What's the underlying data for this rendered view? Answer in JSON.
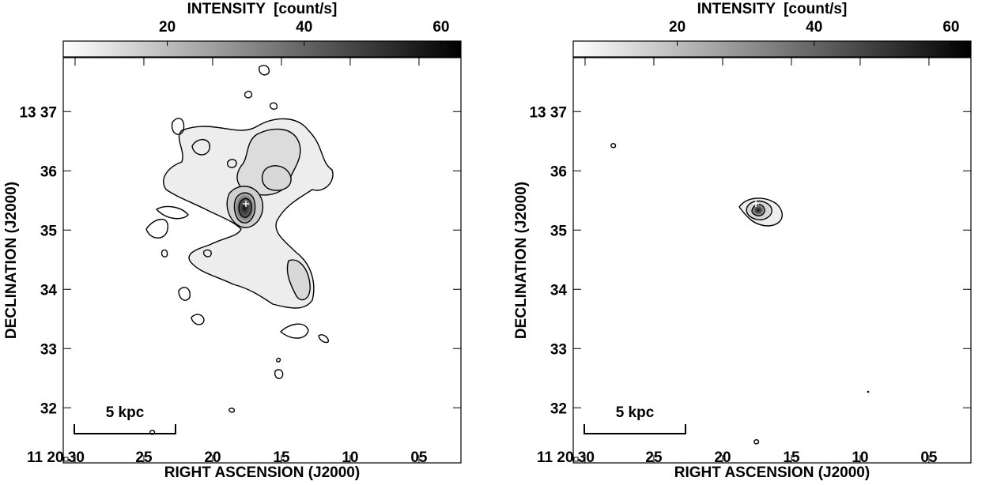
{
  "chart_data": [
    {
      "type": "image",
      "colorbar_label": "INTENSITY  [count/s]",
      "clim": [
        4.8,
        62.9
      ],
      "cticks": [
        20,
        40,
        60
      ],
      "xlabel": "RIGHT ASCENSION (J2000)",
      "ylabel": "DECLINATION (J2000)",
      "xlim": [
        30.86,
        1.95
      ],
      "xticks": [
        {
          "value": 30,
          "label": "11 20 30"
        },
        25,
        20,
        15,
        10,
        {
          "value": 5,
          "label": "05"
        }
      ],
      "ylim": [
        31.07,
        37.91
      ],
      "yticks": [
        {
          "value": 37,
          "label": "13 37"
        },
        36,
        35,
        34,
        33,
        32
      ],
      "scale_bar": "5 kpc"
    },
    {
      "type": "image",
      "colorbar_label": "INTENSITY  [count/s]",
      "clim": [
        4.8,
        62.9
      ],
      "cticks": [
        20,
        40,
        60
      ],
      "xlabel": "RIGHT ASCENSION (J2000)",
      "ylabel": "DECLINATION (J2000)",
      "xlim": [
        30.86,
        1.95
      ],
      "xticks": [
        {
          "value": 30,
          "label": "11 20 30"
        },
        25,
        20,
        15,
        10,
        {
          "value": 5,
          "label": "05"
        }
      ],
      "ylim": [
        31.07,
        37.91
      ],
      "yticks": [
        {
          "value": 37,
          "label": "13 37"
        },
        36,
        35,
        34,
        33,
        32
      ],
      "scale_bar": "5 kpc"
    }
  ]
}
